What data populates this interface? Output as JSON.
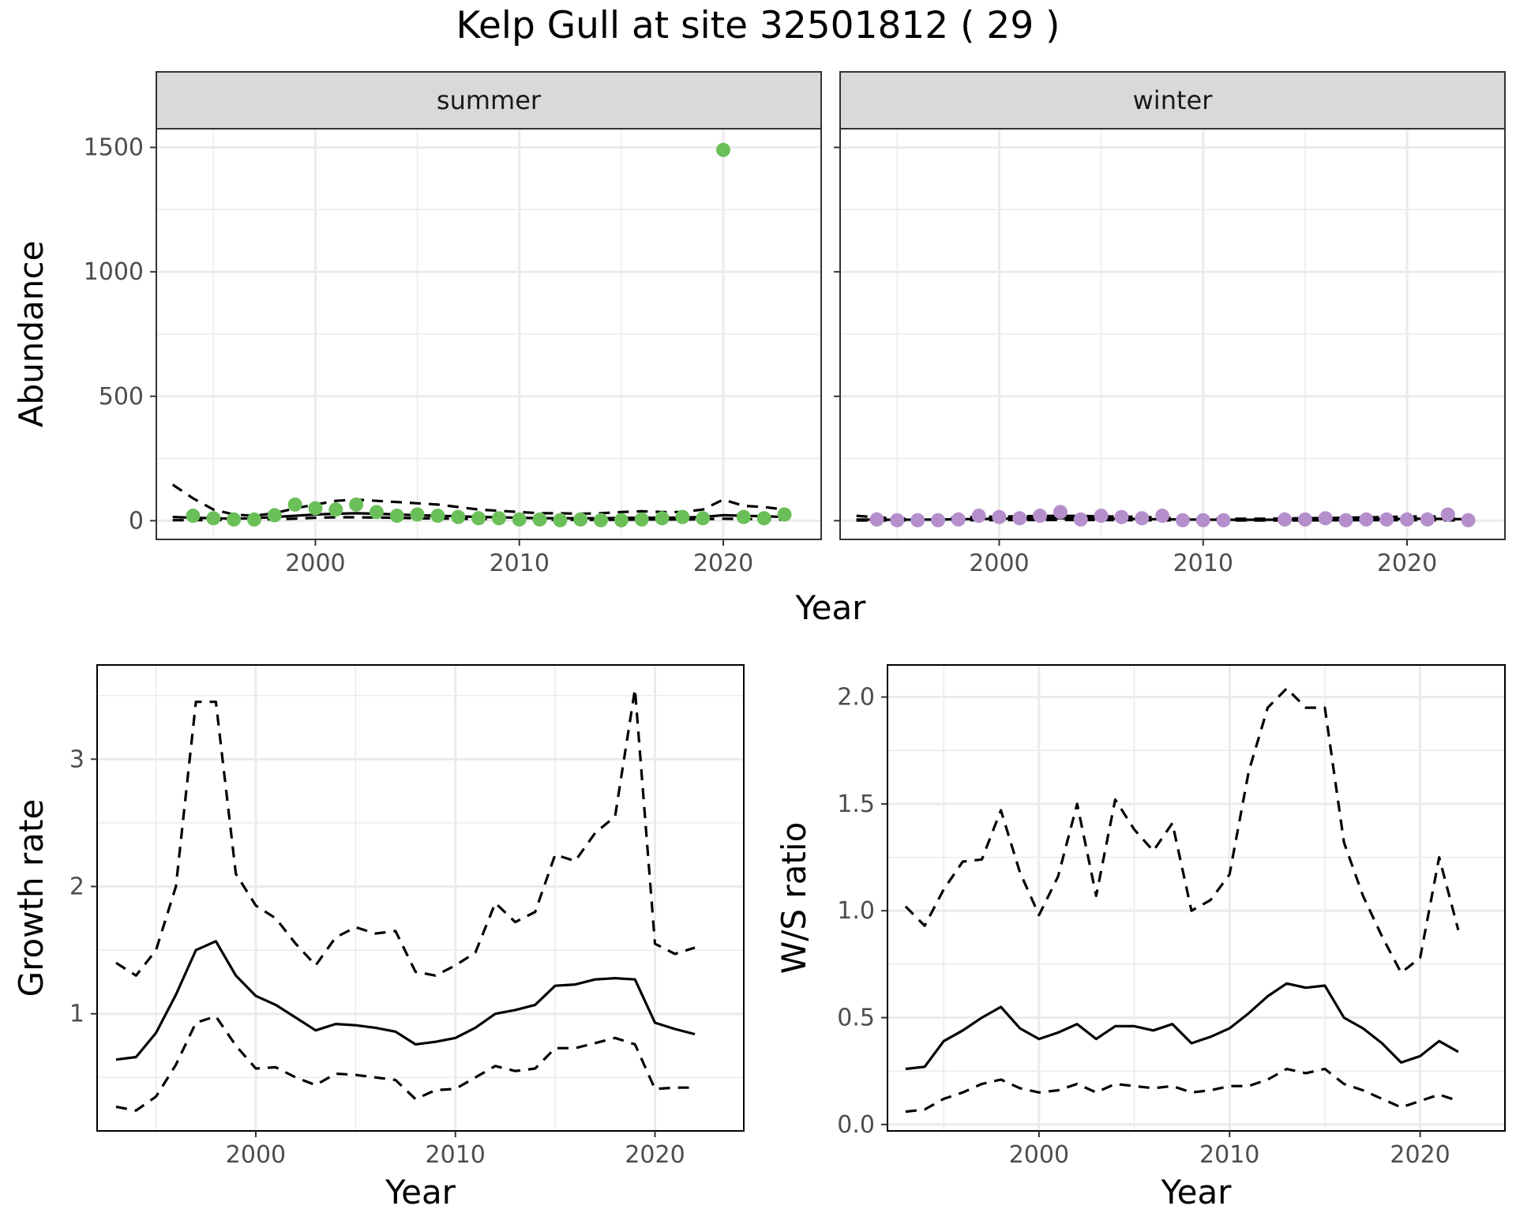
{
  "title": "Kelp Gull at site 32501812 ( 29 )",
  "colors": {
    "summer_points": "#6bbf59",
    "winter_points": "#b48fcc",
    "lines": "#000000",
    "grid": "#ebebeb",
    "strip_background": "#d9d9d9"
  },
  "chart_data": [
    {
      "type": "scatter",
      "panel": "summer",
      "strip_label": "summer",
      "xlabel": "Year",
      "ylabel": "Abundance",
      "xlim": [
        1992.2,
        2024.8
      ],
      "ylim": [
        -75,
        1575
      ],
      "x_ticks": [
        2000,
        2010,
        2020
      ],
      "y_ticks": [
        0,
        500,
        1000,
        1500
      ],
      "grid": true,
      "points": {
        "x": [
          1994,
          1995,
          1996,
          1997,
          1998,
          1999,
          2000,
          2001,
          2002,
          2003,
          2004,
          2005,
          2006,
          2007,
          2008,
          2009,
          2010,
          2011,
          2012,
          2013,
          2014,
          2015,
          2016,
          2017,
          2018,
          2019,
          2020,
          2021,
          2022,
          2023
        ],
        "y": [
          20,
          10,
          5,
          5,
          22,
          65,
          50,
          45,
          65,
          35,
          20,
          25,
          20,
          15,
          10,
          10,
          5,
          5,
          2,
          5,
          2,
          2,
          5,
          10,
          15,
          10,
          1490,
          15,
          10,
          25
        ]
      },
      "lines": [
        {
          "style": "dashed",
          "x": [
            1993,
            1994,
            1995,
            1996,
            1997,
            1998,
            1999,
            2000,
            2001,
            2002,
            2003,
            2004,
            2005,
            2006,
            2007,
            2008,
            2009,
            2010,
            2011,
            2012,
            2013,
            2014,
            2015,
            2016,
            2017,
            2018,
            2019,
            2020,
            2021,
            2022,
            2023
          ],
          "y": [
            145,
            90,
            45,
            25,
            20,
            30,
            50,
            65,
            80,
            85,
            80,
            75,
            70,
            65,
            55,
            45,
            40,
            35,
            30,
            30,
            28,
            30,
            35,
            38,
            35,
            35,
            45,
            85,
            60,
            55,
            45
          ]
        },
        {
          "style": "solid",
          "x": [
            1993,
            1994,
            1995,
            1996,
            1997,
            1998,
            1999,
            2000,
            2001,
            2002,
            2003,
            2004,
            2005,
            2006,
            2007,
            2008,
            2009,
            2010,
            2011,
            2012,
            2013,
            2014,
            2015,
            2016,
            2017,
            2018,
            2019,
            2020,
            2021,
            2022,
            2023
          ],
          "y": [
            15,
            12,
            10,
            8,
            10,
            15,
            20,
            25,
            28,
            30,
            28,
            25,
            22,
            20,
            18,
            15,
            14,
            12,
            10,
            10,
            10,
            10,
            11,
            12,
            12,
            13,
            15,
            22,
            20,
            18,
            15
          ]
        },
        {
          "style": "dashed",
          "x": [
            1993,
            1994,
            1995,
            1996,
            1997,
            1998,
            1999,
            2000,
            2001,
            2002,
            2003,
            2004,
            2005,
            2006,
            2007,
            2008,
            2009,
            2010,
            2011,
            2012,
            2013,
            2014,
            2015,
            2016,
            2017,
            2018,
            2019,
            2020,
            2021,
            2022,
            2023
          ],
          "y": [
            2,
            2,
            3,
            3,
            4,
            6,
            8,
            12,
            14,
            14,
            13,
            12,
            10,
            9,
            8,
            7,
            6,
            5,
            4,
            4,
            4,
            4,
            4,
            5,
            5,
            5,
            6,
            8,
            7,
            6,
            5
          ]
        }
      ]
    },
    {
      "type": "scatter",
      "panel": "winter",
      "strip_label": "winter",
      "xlabel": "Year",
      "ylabel": "Abundance",
      "xlim": [
        1992.2,
        2024.8
      ],
      "ylim": [
        -75,
        1575
      ],
      "x_ticks": [
        2000,
        2010,
        2020
      ],
      "y_ticks": [
        0,
        500,
        1000,
        1500
      ],
      "grid": true,
      "points": {
        "x": [
          1994,
          1995,
          1996,
          1997,
          1998,
          1999,
          2000,
          2001,
          2002,
          2003,
          2004,
          2005,
          2006,
          2007,
          2008,
          2009,
          2010,
          2011,
          2014,
          2015,
          2016,
          2017,
          2018,
          2019,
          2020,
          2021,
          2022,
          2023
        ],
        "y": [
          5,
          2,
          2,
          2,
          5,
          20,
          15,
          10,
          20,
          35,
          5,
          20,
          15,
          10,
          20,
          2,
          2,
          2,
          5,
          5,
          10,
          2,
          5,
          5,
          5,
          5,
          25,
          2
        ]
      },
      "lines": [
        {
          "style": "dashed",
          "x": [
            1993,
            1995,
            1997,
            1999,
            2001,
            2003,
            2005,
            2007,
            2009,
            2011,
            2013,
            2015,
            2017,
            2019,
            2021,
            2023
          ],
          "y": [
            20,
            8,
            10,
            15,
            18,
            20,
            18,
            15,
            10,
            8,
            8,
            10,
            12,
            15,
            18,
            12
          ]
        },
        {
          "style": "solid",
          "x": [
            1993,
            1995,
            1997,
            1999,
            2001,
            2003,
            2005,
            2007,
            2009,
            2011,
            2013,
            2015,
            2017,
            2019,
            2021,
            2023
          ],
          "y": [
            5,
            4,
            5,
            7,
            9,
            10,
            9,
            7,
            5,
            4,
            4,
            5,
            6,
            7,
            8,
            6
          ]
        },
        {
          "style": "dashed",
          "x": [
            1993,
            1995,
            1997,
            1999,
            2001,
            2003,
            2005,
            2007,
            2009,
            2011,
            2013,
            2015,
            2017,
            2019,
            2021,
            2023
          ],
          "y": [
            1,
            1,
            1,
            2,
            3,
            3,
            3,
            2,
            1,
            1,
            1,
            1,
            2,
            2,
            2,
            1
          ]
        }
      ]
    },
    {
      "type": "line",
      "panel": "growth",
      "xlabel": "Year",
      "ylabel": "Growth rate",
      "xlim": [
        1992.05,
        2024.45
      ],
      "ylim": [
        0.08,
        3.74
      ],
      "x_ticks": [
        2000,
        2010,
        2020
      ],
      "y_ticks": [
        1,
        2,
        3
      ],
      "grid": true,
      "series": [
        {
          "style": "dashed",
          "x": [
            1993,
            1994,
            1995,
            1996,
            1997,
            1998,
            1999,
            2000,
            2001,
            2002,
            2003,
            2004,
            2005,
            2006,
            2007,
            2008,
            2009,
            2010,
            2011,
            2012,
            2013,
            2014,
            2015,
            2016,
            2017,
            2018,
            2019,
            2020,
            2021,
            2022
          ],
          "y": [
            1.4,
            1.3,
            1.5,
            2.0,
            3.45,
            3.45,
            2.1,
            1.85,
            1.75,
            1.55,
            1.38,
            1.6,
            1.68,
            1.63,
            1.65,
            1.33,
            1.3,
            1.38,
            1.48,
            1.87,
            1.72,
            1.8,
            2.25,
            2.2,
            2.42,
            2.55,
            3.55,
            1.55,
            1.47,
            1.52
          ]
        },
        {
          "style": "solid",
          "x": [
            1993,
            1994,
            1995,
            1996,
            1997,
            1998,
            1999,
            2000,
            2001,
            2002,
            2003,
            2004,
            2005,
            2006,
            2007,
            2008,
            2009,
            2010,
            2011,
            2012,
            2013,
            2014,
            2015,
            2016,
            2017,
            2018,
            2019,
            2020,
            2021,
            2022
          ],
          "y": [
            0.64,
            0.66,
            0.85,
            1.15,
            1.5,
            1.57,
            1.3,
            1.14,
            1.07,
            0.97,
            0.87,
            0.92,
            0.91,
            0.89,
            0.86,
            0.76,
            0.78,
            0.81,
            0.89,
            1.0,
            1.03,
            1.07,
            1.22,
            1.23,
            1.27,
            1.28,
            1.27,
            0.93,
            0.88,
            0.84
          ]
        },
        {
          "style": "dashed",
          "x": [
            1993,
            1994,
            1995,
            1996,
            1997,
            1998,
            1999,
            2000,
            2001,
            2002,
            2003,
            2004,
            2005,
            2006,
            2007,
            2008,
            2009,
            2010,
            2011,
            2012,
            2013,
            2014,
            2015,
            2016,
            2017,
            2018,
            2019,
            2020,
            2021,
            2022
          ],
          "y": [
            0.27,
            0.24,
            0.35,
            0.6,
            0.93,
            0.98,
            0.75,
            0.57,
            0.58,
            0.5,
            0.44,
            0.53,
            0.52,
            0.5,
            0.48,
            0.33,
            0.4,
            0.41,
            0.5,
            0.59,
            0.55,
            0.57,
            0.73,
            0.73,
            0.77,
            0.81,
            0.76,
            0.41,
            0.42,
            0.42
          ]
        }
      ]
    },
    {
      "type": "line",
      "panel": "ratio",
      "xlabel": "Year",
      "ylabel": "W/S ratio",
      "xlim": [
        1992.05,
        2024.45
      ],
      "ylim": [
        -0.03,
        2.15
      ],
      "x_ticks": [
        2000,
        2010,
        2020
      ],
      "y_ticks": [
        0.0,
        0.5,
        1.0,
        1.5,
        2.0
      ],
      "y_tick_labels": [
        "0.0",
        "0.5",
        "1.0",
        "1.5",
        "2.0"
      ],
      "grid": true,
      "series": [
        {
          "style": "dashed",
          "x": [
            1993,
            1994,
            1995,
            1996,
            1997,
            1998,
            1999,
            2000,
            2001,
            2002,
            2003,
            2004,
            2005,
            2006,
            2007,
            2008,
            2009,
            2010,
            2011,
            2012,
            2013,
            2014,
            2015,
            2016,
            2017,
            2018,
            2019,
            2020,
            2021,
            2022
          ],
          "y": [
            1.02,
            0.93,
            1.1,
            1.23,
            1.24,
            1.47,
            1.18,
            0.98,
            1.16,
            1.5,
            1.07,
            1.52,
            1.38,
            1.28,
            1.41,
            1.0,
            1.05,
            1.17,
            1.65,
            1.95,
            2.04,
            1.95,
            1.95,
            1.32,
            1.07,
            0.88,
            0.71,
            0.78,
            1.25,
            0.91
          ]
        },
        {
          "style": "solid",
          "x": [
            1993,
            1994,
            1995,
            1996,
            1997,
            1998,
            1999,
            2000,
            2001,
            2002,
            2003,
            2004,
            2005,
            2006,
            2007,
            2008,
            2009,
            2010,
            2011,
            2012,
            2013,
            2014,
            2015,
            2016,
            2017,
            2018,
            2019,
            2020,
            2021,
            2022
          ],
          "y": [
            0.26,
            0.27,
            0.39,
            0.44,
            0.5,
            0.55,
            0.45,
            0.4,
            0.43,
            0.47,
            0.4,
            0.46,
            0.46,
            0.44,
            0.47,
            0.38,
            0.41,
            0.45,
            0.52,
            0.6,
            0.66,
            0.64,
            0.65,
            0.5,
            0.45,
            0.38,
            0.29,
            0.32,
            0.39,
            0.34
          ]
        },
        {
          "style": "dashed",
          "x": [
            1993,
            1994,
            1995,
            1996,
            1997,
            1998,
            1999,
            2000,
            2001,
            2002,
            2003,
            2004,
            2005,
            2006,
            2007,
            2008,
            2009,
            2010,
            2011,
            2012,
            2013,
            2014,
            2015,
            2016,
            2017,
            2018,
            2019,
            2020,
            2021,
            2022
          ],
          "y": [
            0.06,
            0.07,
            0.12,
            0.15,
            0.19,
            0.21,
            0.17,
            0.15,
            0.16,
            0.19,
            0.15,
            0.19,
            0.18,
            0.17,
            0.18,
            0.15,
            0.16,
            0.18,
            0.18,
            0.21,
            0.26,
            0.24,
            0.26,
            0.19,
            0.16,
            0.12,
            0.08,
            0.11,
            0.14,
            0.11
          ]
        }
      ]
    }
  ]
}
